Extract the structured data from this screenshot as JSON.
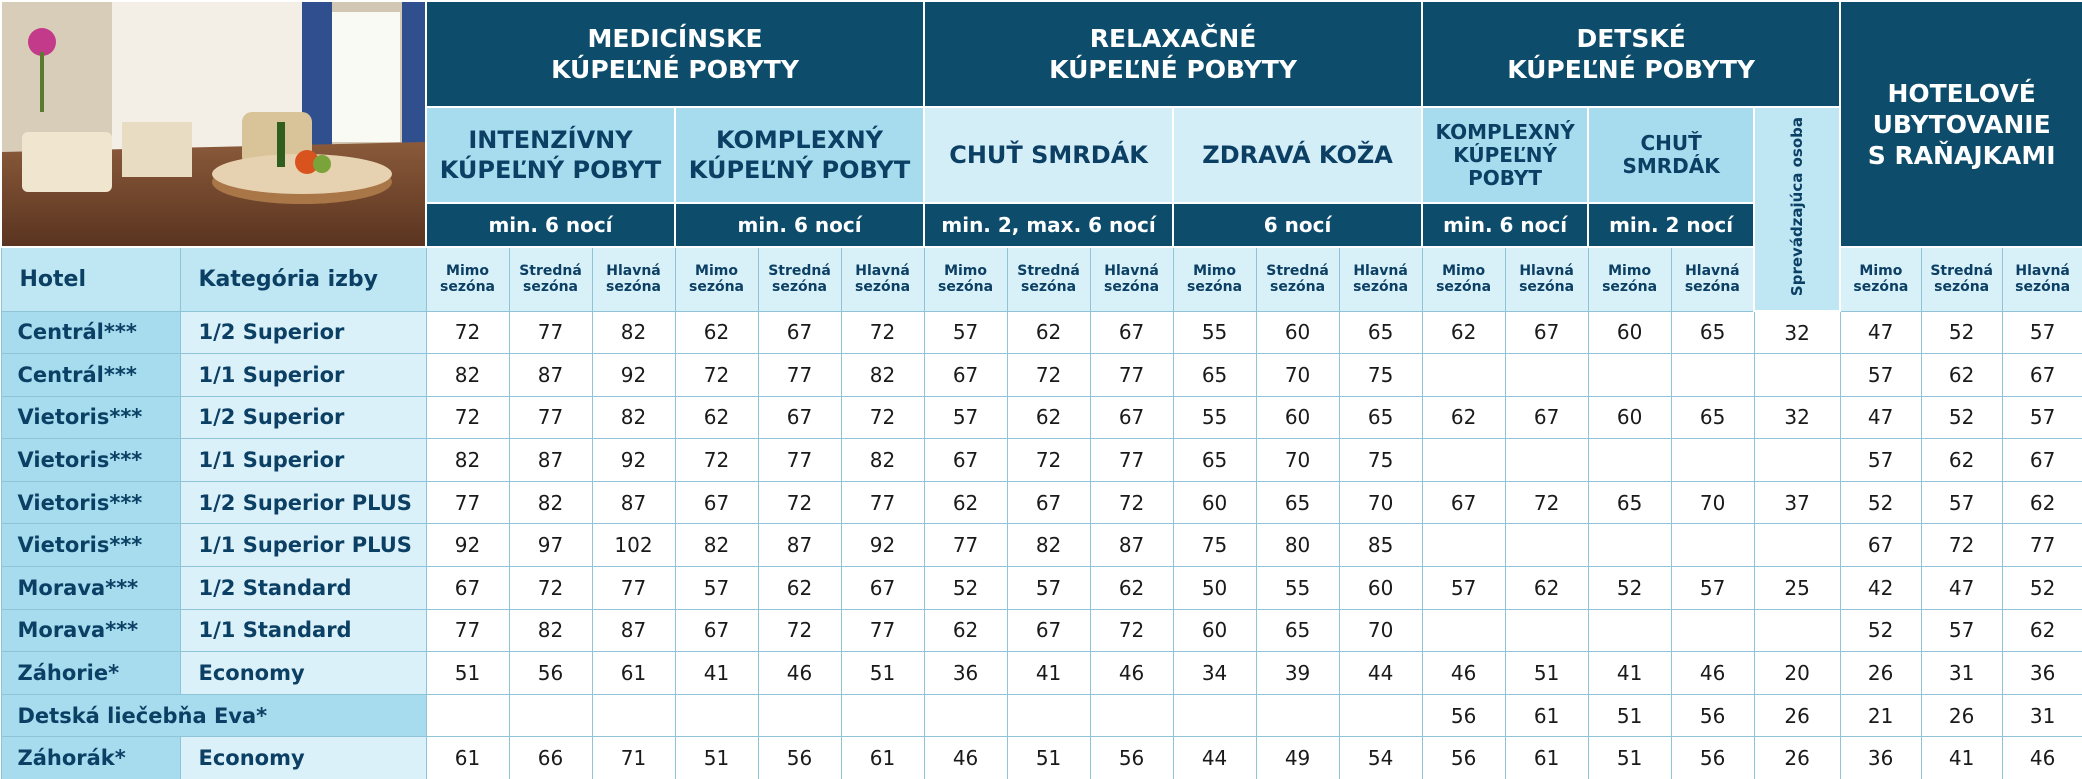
{
  "table": {
    "header": {
      "hotel": "Hotel",
      "category": "Kategória izby"
    },
    "groups": [
      {
        "title": "MEDICÍNSKE\nKÚPEĽNÉ POBYTY",
        "subgroups": [
          {
            "title": "INTENZÍVNY\nKÚPEĽNÝ POBYT",
            "nights": "min. 6 nocí",
            "seasons": [
              "Mimo\nsezóna",
              "Stredná\nsezóna",
              "Hlavná\nsezóna"
            ]
          },
          {
            "title": "KOMPLEXNÝ\nKÚPEĽNÝ POBYT",
            "nights": "min. 6 nocí",
            "seasons": [
              "Mimo\nsezóna",
              "Stredná\nsezóna",
              "Hlavná\nsezóna"
            ]
          }
        ]
      },
      {
        "title": "RELAXAČNÉ\nKÚPEĽNÉ POBYTY",
        "subgroups": [
          {
            "title": "CHUŤ SMRDÁK",
            "nights": "min. 2, max.  6 nocí",
            "seasons": [
              "Mimo\nsezóna",
              "Stredná\nsezóna",
              "Hlavná\nsezóna"
            ]
          },
          {
            "title": "ZDRAVÁ KOŽA",
            "nights": "6 nocí",
            "seasons": [
              "Mimo\nsezóna",
              "Stredná\nsezóna",
              "Hlavná\nsezóna"
            ]
          }
        ]
      },
      {
        "title": "DETSKÉ\nKÚPEĽNÉ POBYTY",
        "subgroups": [
          {
            "title": "KOMPLEXNÝ\nKÚPEĽNÝ\nPOBYT",
            "nights": "min. 6 nocí",
            "seasons": [
              "Mimo\nsezóna",
              "Hlavná\nsezóna"
            ]
          },
          {
            "title": "CHUŤ\nSMRDÁK",
            "nights": "min. 2 nocí",
            "seasons": [
              "Mimo\nsezóna",
              "Hlavná\nsezóna"
            ]
          }
        ],
        "companion": "Sprevádzajúca osoba"
      },
      {
        "title": "HOTELOVÉ\nUBYTOVANIE\nS RAŇAJKAMI",
        "seasons": [
          "Mimo\nsezóna",
          "Stredná\nsezóna",
          "Hlavná\nsezóna"
        ]
      }
    ],
    "rows": [
      {
        "hotel": "Centrál***",
        "category": "1/2 Superior",
        "values": [
          72,
          77,
          82,
          62,
          67,
          72,
          57,
          62,
          67,
          55,
          60,
          65,
          62,
          67,
          60,
          65,
          32,
          47,
          52,
          57
        ]
      },
      {
        "hotel": "Centrál***",
        "category": "1/1 Superior",
        "values": [
          82,
          87,
          92,
          72,
          77,
          82,
          67,
          72,
          77,
          65,
          70,
          75,
          null,
          null,
          null,
          null,
          null,
          57,
          62,
          67
        ]
      },
      {
        "hotel": "Vietoris***",
        "category": "1/2 Superior",
        "values": [
          72,
          77,
          82,
          62,
          67,
          72,
          57,
          62,
          67,
          55,
          60,
          65,
          62,
          67,
          60,
          65,
          32,
          47,
          52,
          57
        ]
      },
      {
        "hotel": "Vietoris***",
        "category": "1/1 Superior",
        "values": [
          82,
          87,
          92,
          72,
          77,
          82,
          67,
          72,
          77,
          65,
          70,
          75,
          null,
          null,
          null,
          null,
          null,
          57,
          62,
          67
        ]
      },
      {
        "hotel": "Vietoris***",
        "category": "1/2 Superior PLUS",
        "values": [
          77,
          82,
          87,
          67,
          72,
          77,
          62,
          67,
          72,
          60,
          65,
          70,
          67,
          72,
          65,
          70,
          37,
          52,
          57,
          62
        ]
      },
      {
        "hotel": "Vietoris***",
        "category": "1/1 Superior PLUS",
        "values": [
          92,
          97,
          102,
          82,
          87,
          92,
          77,
          82,
          87,
          75,
          80,
          85,
          null,
          null,
          null,
          null,
          null,
          67,
          72,
          77
        ]
      },
      {
        "hotel": "Morava***",
        "category": "1/2 Standard",
        "values": [
          67,
          72,
          77,
          57,
          62,
          67,
          52,
          57,
          62,
          50,
          55,
          60,
          57,
          62,
          52,
          57,
          25,
          42,
          47,
          52
        ]
      },
      {
        "hotel": "Morava***",
        "category": "1/1 Standard",
        "values": [
          77,
          82,
          87,
          67,
          72,
          77,
          62,
          67,
          72,
          60,
          65,
          70,
          null,
          null,
          null,
          null,
          null,
          52,
          57,
          62
        ]
      },
      {
        "hotel": "Záhorie*",
        "category": "Economy",
        "values": [
          51,
          56,
          61,
          41,
          46,
          51,
          36,
          41,
          46,
          34,
          39,
          44,
          46,
          51,
          41,
          46,
          20,
          26,
          31,
          36
        ]
      },
      {
        "hotel": "Detská liečebňa Eva*",
        "values": [
          null,
          null,
          null,
          null,
          null,
          null,
          null,
          null,
          null,
          null,
          null,
          null,
          56,
          61,
          51,
          56,
          26,
          21,
          26,
          31
        ]
      },
      {
        "hotel": "Záhorák*",
        "category": "Economy",
        "values": [
          61,
          66,
          71,
          51,
          56,
          61,
          46,
          51,
          56,
          44,
          49,
          54,
          56,
          61,
          51,
          56,
          26,
          36,
          41,
          46
        ]
      }
    ]
  }
}
